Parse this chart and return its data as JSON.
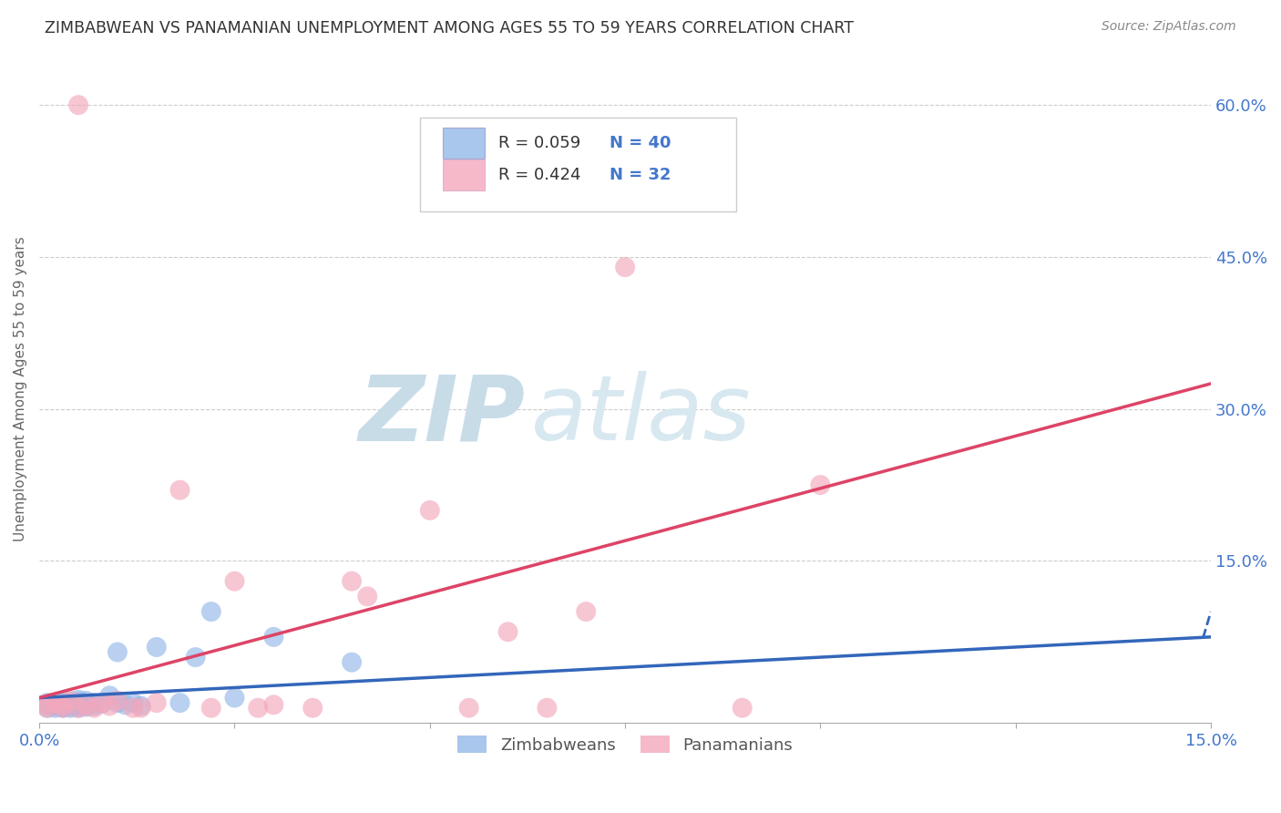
{
  "title": "ZIMBABWEAN VS PANAMANIAN UNEMPLOYMENT AMONG AGES 55 TO 59 YEARS CORRELATION CHART",
  "source": "Source: ZipAtlas.com",
  "ylabel": "Unemployment Among Ages 55 to 59 years",
  "xlim": [
    0.0,
    0.15
  ],
  "ylim": [
    -0.01,
    0.65
  ],
  "xticks": [
    0.0,
    0.025,
    0.05,
    0.075,
    0.1,
    0.125,
    0.15
  ],
  "xtick_labels": [
    "0.0%",
    "",
    "",
    "",
    "",
    "",
    "15.0%"
  ],
  "yticks_right": [
    0.0,
    0.15,
    0.3,
    0.45,
    0.6
  ],
  "ytick_labels_right": [
    "",
    "15.0%",
    "30.0%",
    "45.0%",
    "60.0%"
  ],
  "grid_color": "#cccccc",
  "background_color": "#ffffff",
  "watermark_zip_color": "#c8dce8",
  "watermark_atlas_color": "#d8e8f0",
  "zim_color": "#94b8e8",
  "pan_color": "#f4a8bc",
  "zim_trend_color": "#3366bb",
  "pan_trend_color": "#dd4466",
  "legend_text_color": "#4477cc",
  "legend_R_color": "#333333",
  "legend_N_color": "#4477cc",
  "legend_R_zim": "R = 0.059",
  "legend_N_zim": "N = 40",
  "legend_R_pan": "R = 0.424",
  "legend_N_pan": "N = 32",
  "zim_x": [
    0.001,
    0.001,
    0.001,
    0.002,
    0.002,
    0.002,
    0.002,
    0.003,
    0.003,
    0.003,
    0.003,
    0.003,
    0.004,
    0.004,
    0.004,
    0.004,
    0.005,
    0.005,
    0.005,
    0.005,
    0.005,
    0.006,
    0.006,
    0.006,
    0.007,
    0.007,
    0.008,
    0.009,
    0.01,
    0.01,
    0.011,
    0.012,
    0.013,
    0.015,
    0.018,
    0.02,
    0.022,
    0.025,
    0.03,
    0.04
  ],
  "zim_y": [
    0.005,
    0.008,
    0.01,
    0.005,
    0.007,
    0.008,
    0.01,
    0.005,
    0.006,
    0.008,
    0.01,
    0.012,
    0.005,
    0.007,
    0.009,
    0.011,
    0.005,
    0.007,
    0.009,
    0.011,
    0.013,
    0.006,
    0.008,
    0.012,
    0.007,
    0.01,
    0.009,
    0.017,
    0.01,
    0.06,
    0.008,
    0.01,
    0.007,
    0.065,
    0.01,
    0.055,
    0.1,
    0.015,
    0.075,
    0.05
  ],
  "pan_x": [
    0.001,
    0.001,
    0.002,
    0.003,
    0.003,
    0.004,
    0.005,
    0.005,
    0.006,
    0.007,
    0.008,
    0.009,
    0.01,
    0.012,
    0.013,
    0.015,
    0.018,
    0.022,
    0.025,
    0.03,
    0.035,
    0.04,
    0.042,
    0.05,
    0.055,
    0.06,
    0.065,
    0.07,
    0.075,
    0.09,
    0.1,
    0.028
  ],
  "pan_y": [
    0.005,
    0.008,
    0.01,
    0.005,
    0.008,
    0.012,
    0.6,
    0.005,
    0.007,
    0.005,
    0.01,
    0.007,
    0.012,
    0.005,
    0.005,
    0.01,
    0.22,
    0.005,
    0.13,
    0.008,
    0.005,
    0.13,
    0.115,
    0.2,
    0.005,
    0.08,
    0.005,
    0.1,
    0.44,
    0.005,
    0.225,
    0.005
  ],
  "zim_trend_x": [
    0.0,
    0.15
  ],
  "zim_trend_y": [
    0.015,
    0.075
  ],
  "pan_trend_x": [
    0.0,
    0.15
  ],
  "pan_trend_y": [
    0.015,
    0.325
  ]
}
